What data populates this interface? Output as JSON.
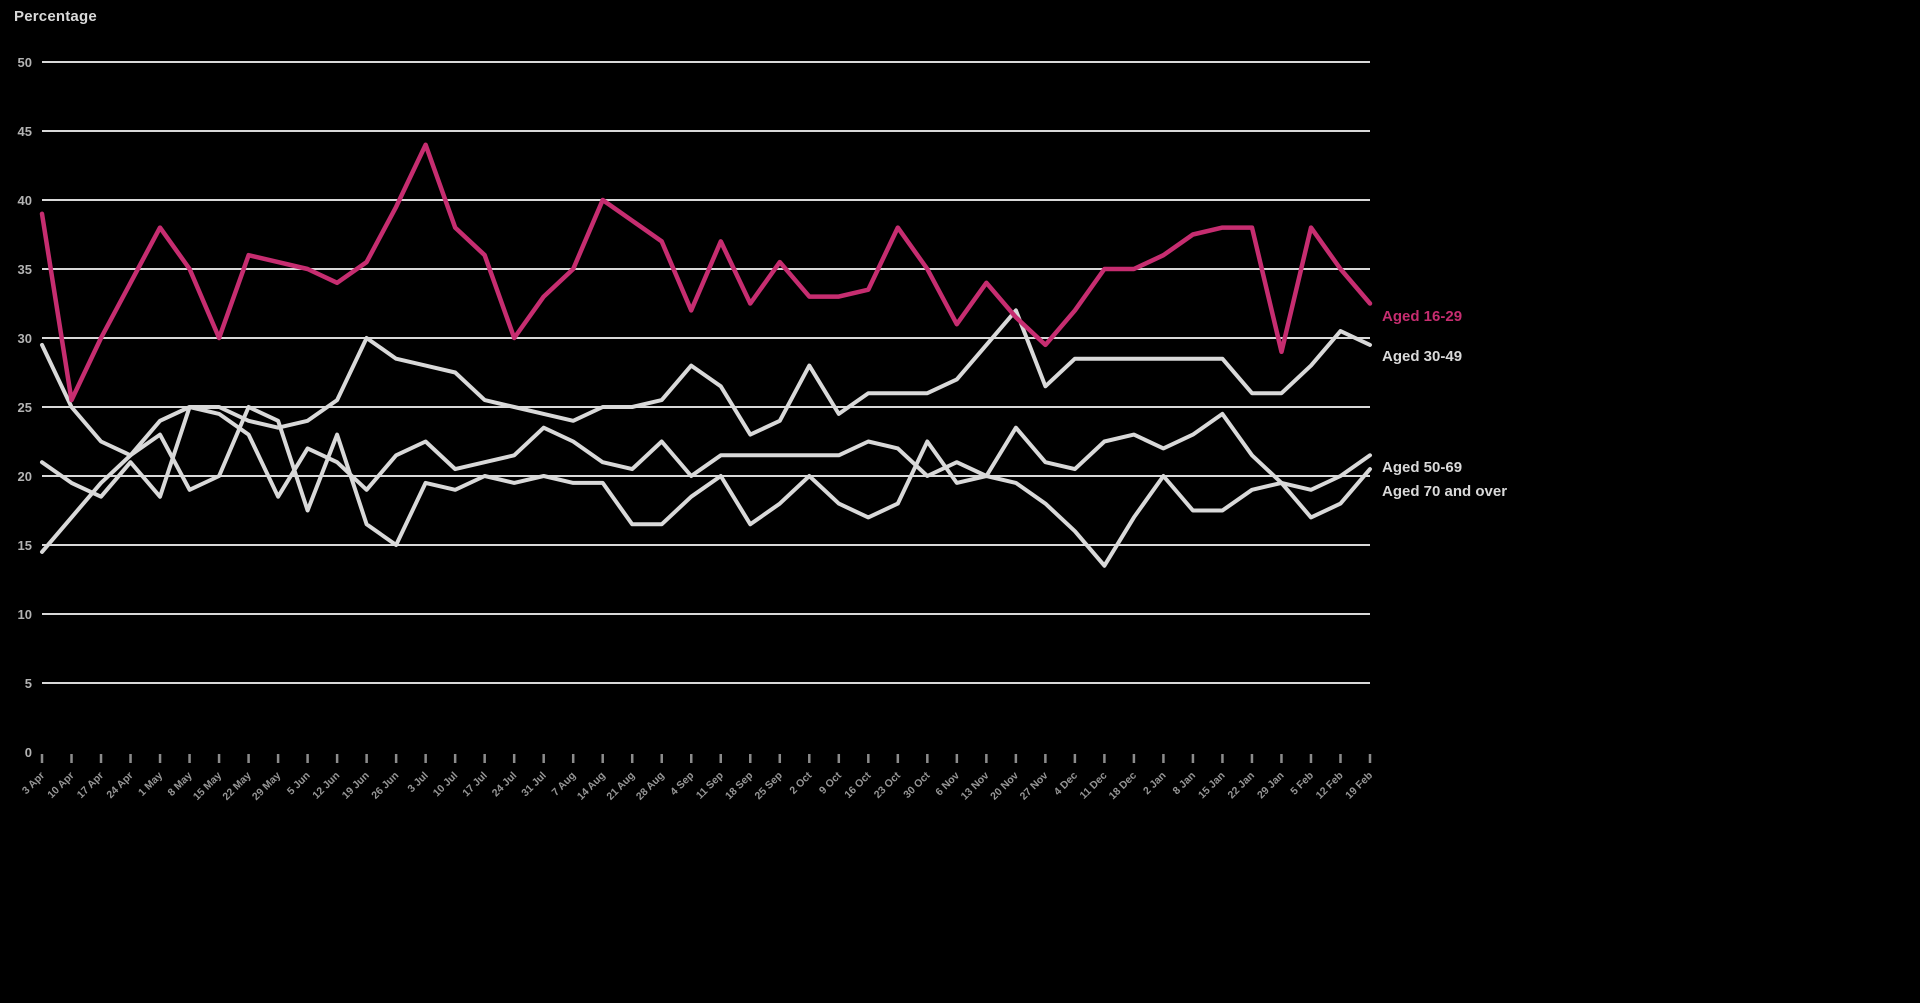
{
  "header": {
    "axis_unit_label": "Percentage"
  },
  "colors": {
    "background": "#000000",
    "gridline": "#d9d9d9",
    "tick_mark": "#8c8c8c",
    "ytick_label": "#b3b3b3",
    "xtick_label": "#969696",
    "accent_pink": "#c62d70",
    "series_gray": "#d9d9d9"
  },
  "chart_data": {
    "type": "line",
    "title": "Percentage",
    "xlabel": "",
    "ylabel": "Percentage",
    "ylim": [
      0,
      50
    ],
    "y_ticks": [
      0,
      5,
      10,
      15,
      20,
      25,
      30,
      35,
      40,
      45,
      50
    ],
    "grid": "horizontal",
    "legend_position": "right-end-labels",
    "categories": [
      "3 Apr",
      "10 Apr",
      "17 Apr",
      "24 Apr",
      "1 May",
      "8 May",
      "15 May",
      "22 May",
      "29 May",
      "5 Jun",
      "12 Jun",
      "19 Jun",
      "26 Jun",
      "3 Jul",
      "10 Jul",
      "17 Jul",
      "24 Jul",
      "31 Jul",
      "7 Aug",
      "14 Aug",
      "21 Aug",
      "28 Aug",
      "4 Sep",
      "11 Sep",
      "18 Sep",
      "25 Sep",
      "2 Oct",
      "9 Oct",
      "16 Oct",
      "23 Oct",
      "30 Oct",
      "6 Nov",
      "13 Nov",
      "20 Nov",
      "27 Nov",
      "4 Dec",
      "11 Dec",
      "18 Dec",
      "2 Jan",
      "8 Jan",
      "15 Jan",
      "22 Jan",
      "29 Jan",
      "5 Feb",
      "12 Feb",
      "19 Feb"
    ],
    "series": [
      {
        "name": "Aged 16-29",
        "color": "#c62d70",
        "stroke_width": 4.5,
        "values": [
          39,
          25.5,
          30,
          34,
          38,
          35,
          30,
          36,
          35.5,
          35,
          34,
          35.5,
          39.5,
          44,
          38,
          36,
          30,
          33,
          35,
          40,
          38.5,
          37,
          32,
          37,
          32.5,
          35.5,
          33,
          33,
          33.5,
          38,
          35,
          31,
          34,
          31.5,
          29.5,
          32,
          35,
          35,
          36,
          37.5,
          38,
          38,
          29,
          38,
          35,
          32.5
        ]
      },
      {
        "name": "Aged 30-49",
        "color": "#d9d9d9",
        "stroke_width": 4,
        "values": [
          29.5,
          25,
          22.5,
          21.5,
          24,
          25,
          25,
          24,
          23.5,
          24,
          25.5,
          30,
          28.5,
          28,
          27.5,
          25.5,
          25,
          24.5,
          24,
          25,
          25,
          25.5,
          28,
          26.5,
          23,
          24,
          28,
          24.5,
          26,
          26,
          26,
          27,
          29.5,
          32,
          26.5,
          28.5,
          28.5,
          28.5,
          28.5,
          28.5,
          28.5,
          26,
          26,
          28,
          30.5,
          29.5
        ]
      },
      {
        "name": "Aged 50-69",
        "color": "#d9d9d9",
        "stroke_width": 4,
        "values": [
          21,
          19.5,
          18.5,
          21,
          18.5,
          25,
          24.5,
          23,
          18.5,
          22,
          21,
          19,
          21.5,
          22.5,
          20.5,
          21,
          21.5,
          23.5,
          22.5,
          21,
          20.5,
          22.5,
          20,
          21.5,
          21.5,
          21.5,
          21.5,
          21.5,
          22.5,
          22,
          20,
          21,
          20,
          23.5,
          21,
          20.5,
          22.5,
          23,
          22,
          23,
          24.5,
          21.5,
          19.5,
          19,
          20,
          21.5
        ]
      },
      {
        "name": "Aged 70 and over",
        "color": "#d9d9d9",
        "stroke_width": 4,
        "values": [
          14.5,
          17,
          19.5,
          21.5,
          23,
          19,
          20,
          25,
          24,
          17.5,
          23,
          16.5,
          15,
          19.5,
          19,
          20,
          19.5,
          20,
          19.5,
          19.5,
          16.5,
          16.5,
          18.5,
          20,
          16.5,
          18,
          20,
          18,
          17,
          18,
          22.5,
          19.5,
          20,
          19.5,
          18,
          16,
          13.5,
          17,
          20,
          17.5,
          17.5,
          19,
          19.5,
          17,
          18,
          20.5
        ]
      }
    ]
  }
}
